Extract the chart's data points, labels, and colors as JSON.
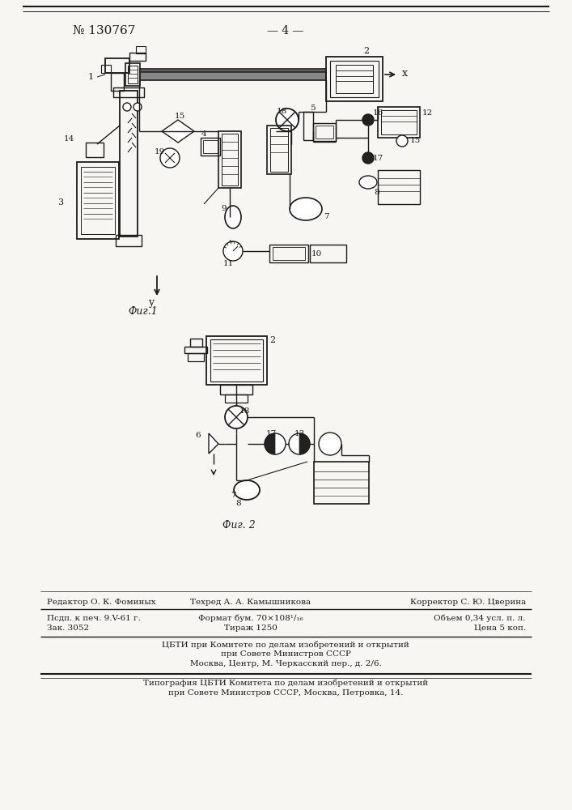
{
  "patent_number": "№ 130767",
  "page_number": "— 4 —",
  "fig1_label": "Фиг.1",
  "fig2_label": "Фиг. 2",
  "bg_color": "#f7f6f2",
  "line_color": "#1a1a1a",
  "footer_line1_left": "Редактор О. К. Фоминых",
  "footer_line1_mid": "Техред А. А. Камышникова",
  "footer_line1_right": "Корректор С. Ю. Цверина",
  "footer_line2_left": "Псдп. к печ. 9.V-61 г.",
  "footer_line2_mid": "Формат бум. 70×108¹/₁₆",
  "footer_line2_right": "Объем 0,34 усл. п. л.",
  "footer_line3_left": "Зак. 3052",
  "footer_line3_mid": "Тираж 1250",
  "footer_line3_right": "Цена 5 коп.",
  "footer_line4": "ЦБТИ при Комитете по делам изобретений и открытий",
  "footer_line5": "при Совете Министров СССР",
  "footer_line6": "Москва, Центр, М. Черкасский пер., д. 2/6.",
  "footer_line7": "Типография ЦБТИ Комитета по делам изобретений и открытий",
  "footer_line8": "при Совете Министров СССР, Москва, Петровка, 14."
}
